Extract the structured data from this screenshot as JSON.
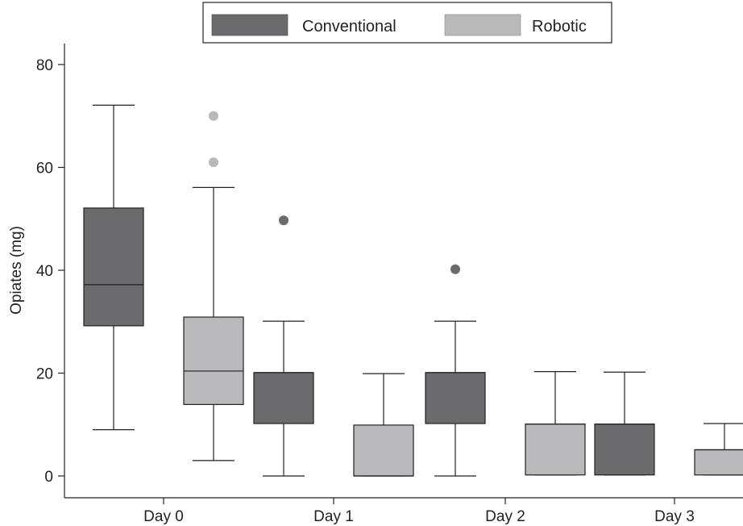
{
  "chart_data": {
    "type": "box",
    "title": "",
    "xlabel": "",
    "ylabel": "Opiates (mg)",
    "ylim": [
      -4,
      82
    ],
    "yticks": [
      0,
      20,
      40,
      60,
      80
    ],
    "categories": [
      "Day 0",
      "Day 1",
      "Day 2",
      "Day 3"
    ],
    "legend_position": "top-center",
    "series": [
      {
        "name": "Conventional",
        "color": "#6b6b6e",
        "boxes": [
          {
            "category": "Day 0",
            "whisker_low": 9,
            "q1": 29.2,
            "median": 37.2,
            "q3": 52.1,
            "whisker_high": 72.1,
            "outliers": []
          },
          {
            "category": "Day 1",
            "whisker_low": 0,
            "q1": 10.2,
            "median": 20.1,
            "q3": 20.1,
            "whisker_high": 30.1,
            "outliers": [
              49.7
            ]
          },
          {
            "category": "Day 2",
            "whisker_low": 0,
            "q1": 10.2,
            "median": 20.1,
            "q3": 20.1,
            "whisker_high": 30.1,
            "outliers": [
              40.2
            ]
          },
          {
            "category": "Day 3",
            "whisker_low": 0.2,
            "q1": 0.2,
            "median": 10.1,
            "q3": 10.1,
            "whisker_high": 20.2,
            "outliers": []
          }
        ]
      },
      {
        "name": "Robotic",
        "color": "#b9b9bc",
        "boxes": [
          {
            "category": "Day 0",
            "whisker_low": 3,
            "q1": 13.9,
            "median": 20.4,
            "q3": 30.9,
            "whisker_high": 56.1,
            "outliers": [
              61,
              70
            ]
          },
          {
            "category": "Day 1",
            "whisker_low": 0,
            "q1": 0,
            "median": 0,
            "q3": 9.9,
            "whisker_high": 19.9,
            "outliers": []
          },
          {
            "category": "Day 2",
            "whisker_low": 0.2,
            "q1": 0.2,
            "median": 10.1,
            "q3": 10.1,
            "whisker_high": 20.3,
            "outliers": []
          },
          {
            "category": "Day 3",
            "whisker_low": 0.2,
            "q1": 0.2,
            "median": 5.1,
            "q3": 5.1,
            "whisker_high": 10.2,
            "outliers": []
          }
        ]
      }
    ]
  }
}
